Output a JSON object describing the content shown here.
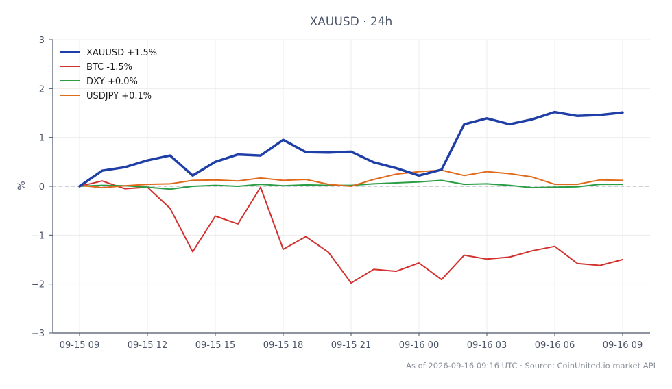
{
  "chart_data": {
    "type": "line",
    "title": "XAUUSD · 24h",
    "ylabel": "%",
    "xlabel": "",
    "ylim": [
      -3,
      3
    ],
    "yticks": [
      -3,
      -2,
      -1,
      0,
      1,
      2,
      3
    ],
    "ytick_labels": [
      "−3",
      "−2",
      "−1",
      "0",
      "1",
      "2",
      "3"
    ],
    "x_tick_labels": [
      "09-15 09",
      "09-15 12",
      "09-15 15",
      "09-15 18",
      "09-15 21",
      "09-16 00",
      "09-16 03",
      "09-16 06",
      "09-16 09"
    ],
    "x_tick_indices": [
      0,
      3,
      6,
      9,
      12,
      15,
      18,
      21,
      24
    ],
    "grid": true,
    "legend_position": "top-left",
    "zero_line": true,
    "x": [
      "09-15 09",
      "09-15 10",
      "09-15 11",
      "09-15 12",
      "09-15 13",
      "09-15 14",
      "09-15 15",
      "09-15 16",
      "09-15 17",
      "09-15 18",
      "09-15 19",
      "09-15 20",
      "09-15 21",
      "09-15 22",
      "09-15 23",
      "09-16 00",
      "09-16 01",
      "09-16 02",
      "09-16 03",
      "09-16 04",
      "09-16 05",
      "09-16 06",
      "09-16 07",
      "09-16 08",
      "09-16 09"
    ],
    "series": [
      {
        "name": "XAUUSD +1.5%",
        "color": "#1f3fa6",
        "width": 3.5,
        "values": [
          0.0,
          0.32,
          0.39,
          0.53,
          0.63,
          0.22,
          0.5,
          0.65,
          0.63,
          0.95,
          0.7,
          0.69,
          0.71,
          0.49,
          0.37,
          0.22,
          0.34,
          1.27,
          1.39,
          1.27,
          1.37,
          1.52,
          1.44,
          1.46,
          1.51
        ]
      },
      {
        "name": "BTC -1.5%",
        "color": "#d1312f",
        "width": 2,
        "values": [
          0.0,
          0.11,
          -0.05,
          -0.02,
          -0.45,
          -1.34,
          -0.61,
          -0.77,
          -0.02,
          -1.29,
          -1.03,
          -1.35,
          -1.98,
          -1.7,
          -1.74,
          -1.57,
          -1.91,
          -1.41,
          -1.49,
          -1.45,
          -1.32,
          -1.23,
          -1.58,
          -1.62,
          -1.5
        ]
      },
      {
        "name": "DXY +0.0%",
        "color": "#2a9c44",
        "width": 2,
        "values": [
          0.0,
          0.02,
          0.01,
          -0.02,
          -0.06,
          0.0,
          0.02,
          0.0,
          0.04,
          0.01,
          0.03,
          0.02,
          0.02,
          0.05,
          0.07,
          0.09,
          0.12,
          0.04,
          0.05,
          0.02,
          -0.03,
          -0.02,
          -0.01,
          0.04,
          0.04
        ]
      },
      {
        "name": "USDJPY +0.1%",
        "color": "#e06a1c",
        "width": 2,
        "values": [
          0.02,
          -0.03,
          0.01,
          0.04,
          0.05,
          0.12,
          0.13,
          0.11,
          0.17,
          0.12,
          0.14,
          0.04,
          0.0,
          0.14,
          0.25,
          0.3,
          0.33,
          0.22,
          0.3,
          0.26,
          0.19,
          0.04,
          0.04,
          0.13,
          0.12
        ]
      }
    ],
    "footnote": "As of 2026-09-16 09:16 UTC · Source: CoinUnited.io market API"
  }
}
